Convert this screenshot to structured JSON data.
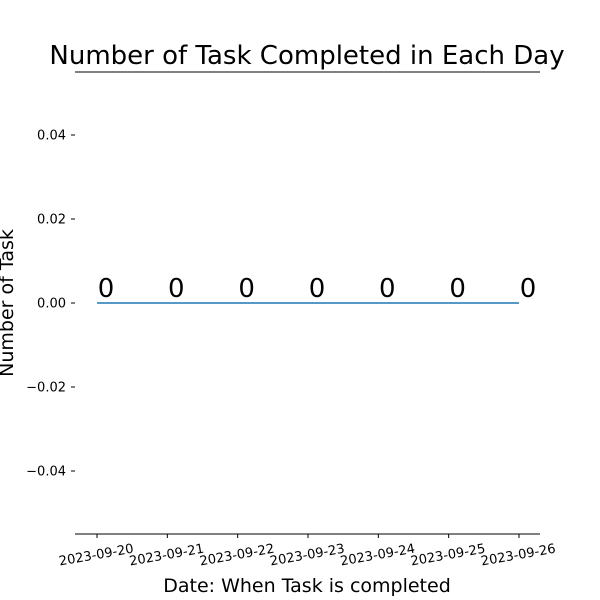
{
  "chart_data": {
    "type": "line",
    "title": "Number of Task Completed in Each Day",
    "xlabel": "Date: When Task is completed",
    "ylabel": "Number of Task",
    "x": [
      "2023-09-20",
      "2023-09-21",
      "2023-09-22",
      "2023-09-23",
      "2023-09-24",
      "2023-09-25",
      "2023-09-26"
    ],
    "values": [
      0,
      0,
      0,
      0,
      0,
      0,
      0
    ],
    "data_labels": [
      "0",
      "0",
      "0",
      "0",
      "0",
      "0",
      "0"
    ],
    "ylim": [
      -0.055,
      0.055
    ],
    "yticks": [
      -0.04,
      -0.02,
      0.0,
      0.02,
      0.04
    ],
    "ytick_labels": [
      "−0.04",
      "−0.02",
      "0.00",
      "0.02",
      "0.04"
    ],
    "grid": false,
    "line_color": "#1f77b4"
  }
}
